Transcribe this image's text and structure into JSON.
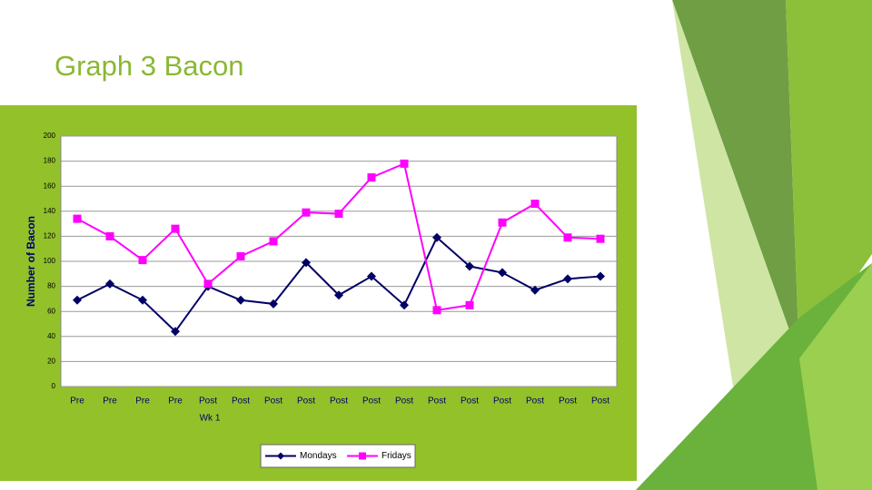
{
  "slide": {
    "title": "Graph 3 Bacon"
  },
  "chart_data": {
    "type": "line",
    "y_label": "Number of Bacon",
    "x_label": "Wk 1",
    "categories": [
      "Pre",
      "Pre",
      "Pre",
      "Pre",
      "Post",
      "Post",
      "Post",
      "Post",
      "Post",
      "Post",
      "Post",
      "Post",
      "Post",
      "Post",
      "Post",
      "Post",
      "Post"
    ],
    "series": [
      {
        "name": "Mondays",
        "color": "#000066",
        "marker": "diamond",
        "values": [
          69,
          82,
          69,
          44,
          80,
          69,
          66,
          99,
          73,
          88,
          65,
          119,
          96,
          91,
          77,
          86,
          88
        ]
      },
      {
        "name": "Fridays",
        "color": "#ff00ff",
        "marker": "square",
        "values": [
          134,
          120,
          101,
          126,
          82,
          104,
          116,
          139,
          138,
          167,
          178,
          61,
          65,
          131,
          146,
          119,
          118
        ]
      }
    ],
    "ylim": [
      0,
      200
    ],
    "yticks": [
      0,
      20,
      40,
      60,
      80,
      100,
      120,
      140,
      160,
      180,
      200
    ],
    "grid": true,
    "legend": "bottom"
  }
}
